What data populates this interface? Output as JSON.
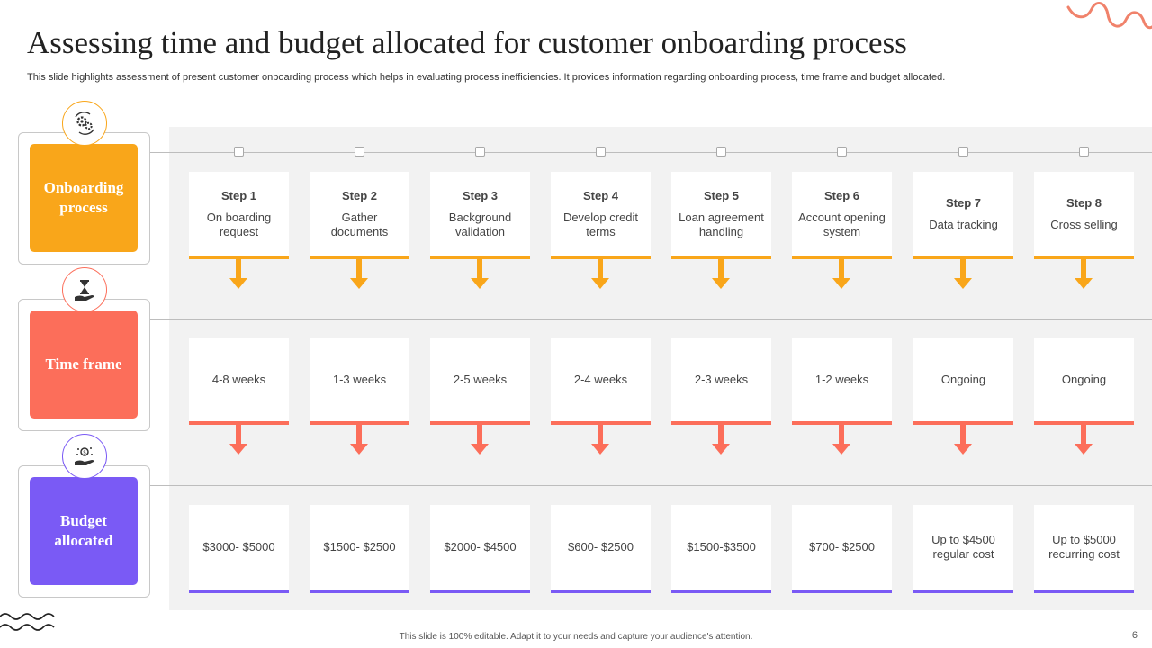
{
  "title": "Assessing time and budget allocated  for customer onboarding process",
  "subtitle": "This slide highlights assessment of present customer onboarding process which helps in evaluating process inefficiencies. It provides information regarding onboarding process, time frame and budget allocated.",
  "colors": {
    "orange": "#f9a61a",
    "coral": "#fc6e5a",
    "purple": "#7a5af5",
    "panel": "#f2f2f2"
  },
  "rows": [
    {
      "label": "Onboarding process",
      "icon": "gears-icon"
    },
    {
      "label": "Time frame",
      "icon": "hourglass-hand-icon"
    },
    {
      "label": "Budget allocated",
      "icon": "money-hand-icon"
    }
  ],
  "steps": [
    {
      "step": "Step 1",
      "name": "On boarding request",
      "time": "4-8 weeks",
      "budget": "$3000- $5000"
    },
    {
      "step": "Step 2",
      "name": "Gather documents",
      "time": "1-3 weeks",
      "budget": "$1500- $2500"
    },
    {
      "step": "Step 3",
      "name": "Background validation",
      "time": "2-5 weeks",
      "budget": "$2000- $4500"
    },
    {
      "step": "Step 4",
      "name": "Develop credit terms",
      "time": "2-4 weeks",
      "budget": "$600- $2500"
    },
    {
      "step": "Step 5",
      "name": "Loan agreement handling",
      "time": "2-3 weeks",
      "budget": "$1500-$3500"
    },
    {
      "step": "Step 6",
      "name": "Account opening system",
      "time": "1-2 weeks",
      "budget": "$700- $2500"
    },
    {
      "step": "Step 7",
      "name": "Data tracking",
      "time": "Ongoing",
      "budget": "Up to $4500 regular cost"
    },
    {
      "step": "Step 8",
      "name": "Cross selling",
      "time": "Ongoing",
      "budget": "Up to $5000 recurring cost"
    }
  ],
  "footer": "This slide is 100% editable.  Adapt it to your needs and capture your audience's attention.",
  "page_number": "6"
}
